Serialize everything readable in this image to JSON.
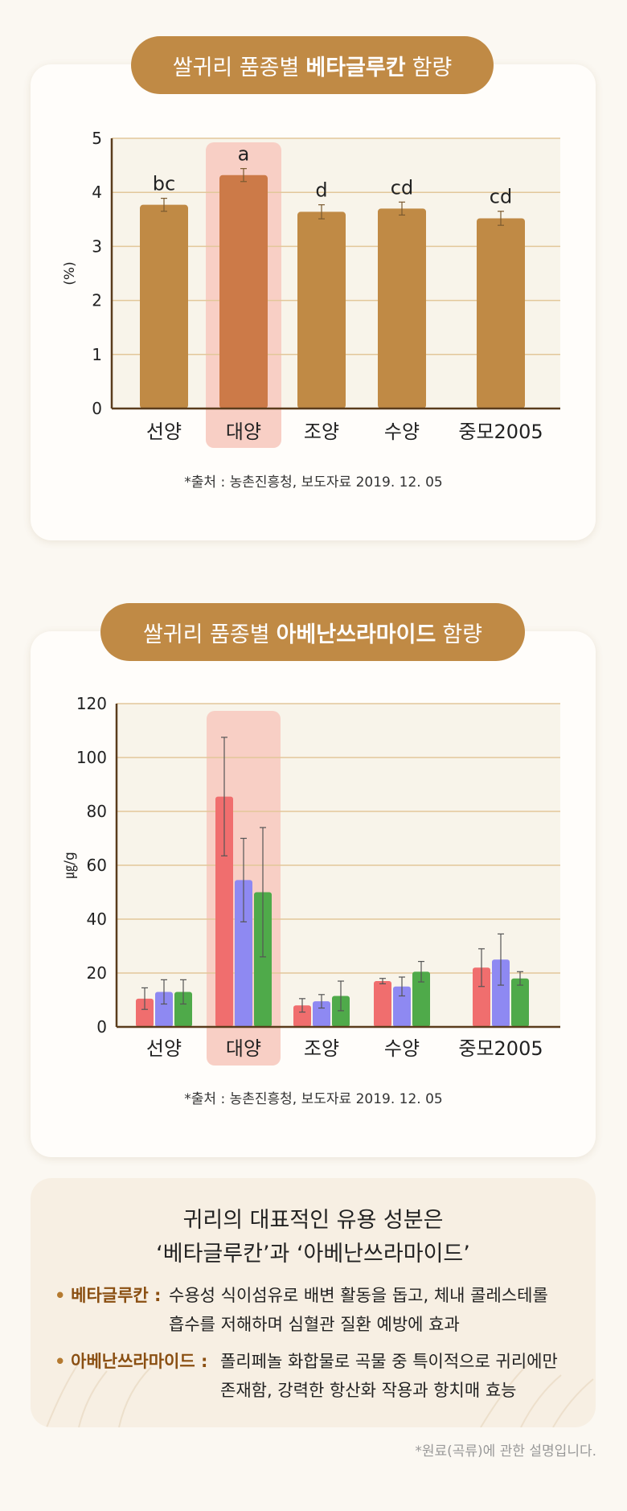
{
  "chart_data": [
    {
      "type": "bar",
      "title_parts": {
        "pre": "쌀귀리 품종별",
        "bold": "베타글루칸",
        "post": "함량"
      },
      "ylabel": "(%)",
      "ylim": [
        0,
        5
      ],
      "yticks": [
        0,
        1,
        2,
        3,
        4,
        5
      ],
      "categories": [
        "선양",
        "대양",
        "조양",
        "수양",
        "중모2005"
      ],
      "values": [
        3.77,
        4.32,
        3.64,
        3.7,
        3.52
      ],
      "errors": [
        0.12,
        0.12,
        0.13,
        0.12,
        0.13
      ],
      "significance": [
        "bc",
        "a",
        "d",
        "cd",
        "cd"
      ],
      "highlight_index": 1,
      "bar_color": "#c08a45",
      "highlight_bar_color": "#cc7a48",
      "source": "*출처 : 농촌진흥청, 보도자료 2019. 12. 05"
    },
    {
      "type": "bar",
      "title_parts": {
        "pre": "쌀귀리 품종별",
        "bold": "아베난쓰라마이드",
        "post": "함량"
      },
      "ylabel": "㎍/g",
      "ylim": [
        0,
        120
      ],
      "yticks": [
        0,
        20,
        40,
        60,
        80,
        100,
        120
      ],
      "categories": [
        "선양",
        "대양",
        "조양",
        "수양",
        "중모2005"
      ],
      "series": [
        {
          "color": "#f06e6e",
          "values": [
            10.5,
            85.5,
            8,
            17,
            22
          ],
          "errors": [
            4,
            22,
            2.5,
            1,
            7
          ]
        },
        {
          "color": "#8e89f2",
          "values": [
            13,
            54.5,
            9.5,
            15,
            25
          ],
          "errors": [
            4.5,
            15.5,
            2.5,
            3.5,
            9.5
          ]
        },
        {
          "color": "#4faa4a",
          "values": [
            13,
            50,
            11.5,
            20.5,
            18
          ],
          "errors": [
            4.5,
            24,
            5.5,
            3.8,
            2.5
          ]
        }
      ],
      "highlight_index": 1,
      "source": "*출처 : 농촌진흥청, 보도자료 2019. 12. 05"
    }
  ],
  "info": {
    "title_line1": "귀리의 대표적인 유용 성분은",
    "title_line2": "‘베타글루칸’과 ‘아베난쓰라마이드’",
    "bullet1_key": "베타글루칸 :",
    "bullet1_line1": "수용성 식이섬유로 배변 활동을 돕고, 체내 콜레스테롤",
    "bullet1_line2": "흡수를 저해하며 심혈관 질환 예방에 효과",
    "bullet2_key": "아베난쓰라마이드 :",
    "bullet2_line1": "폴리페놀 화합물로 곡물 중 특이적으로 귀리에만",
    "bullet2_line2": "존재함, 강력한 항산화 작용과 항치매 효능",
    "bullet_dot": "•"
  },
  "footnote": "*원료(곡류)에 관한 설명입니다."
}
